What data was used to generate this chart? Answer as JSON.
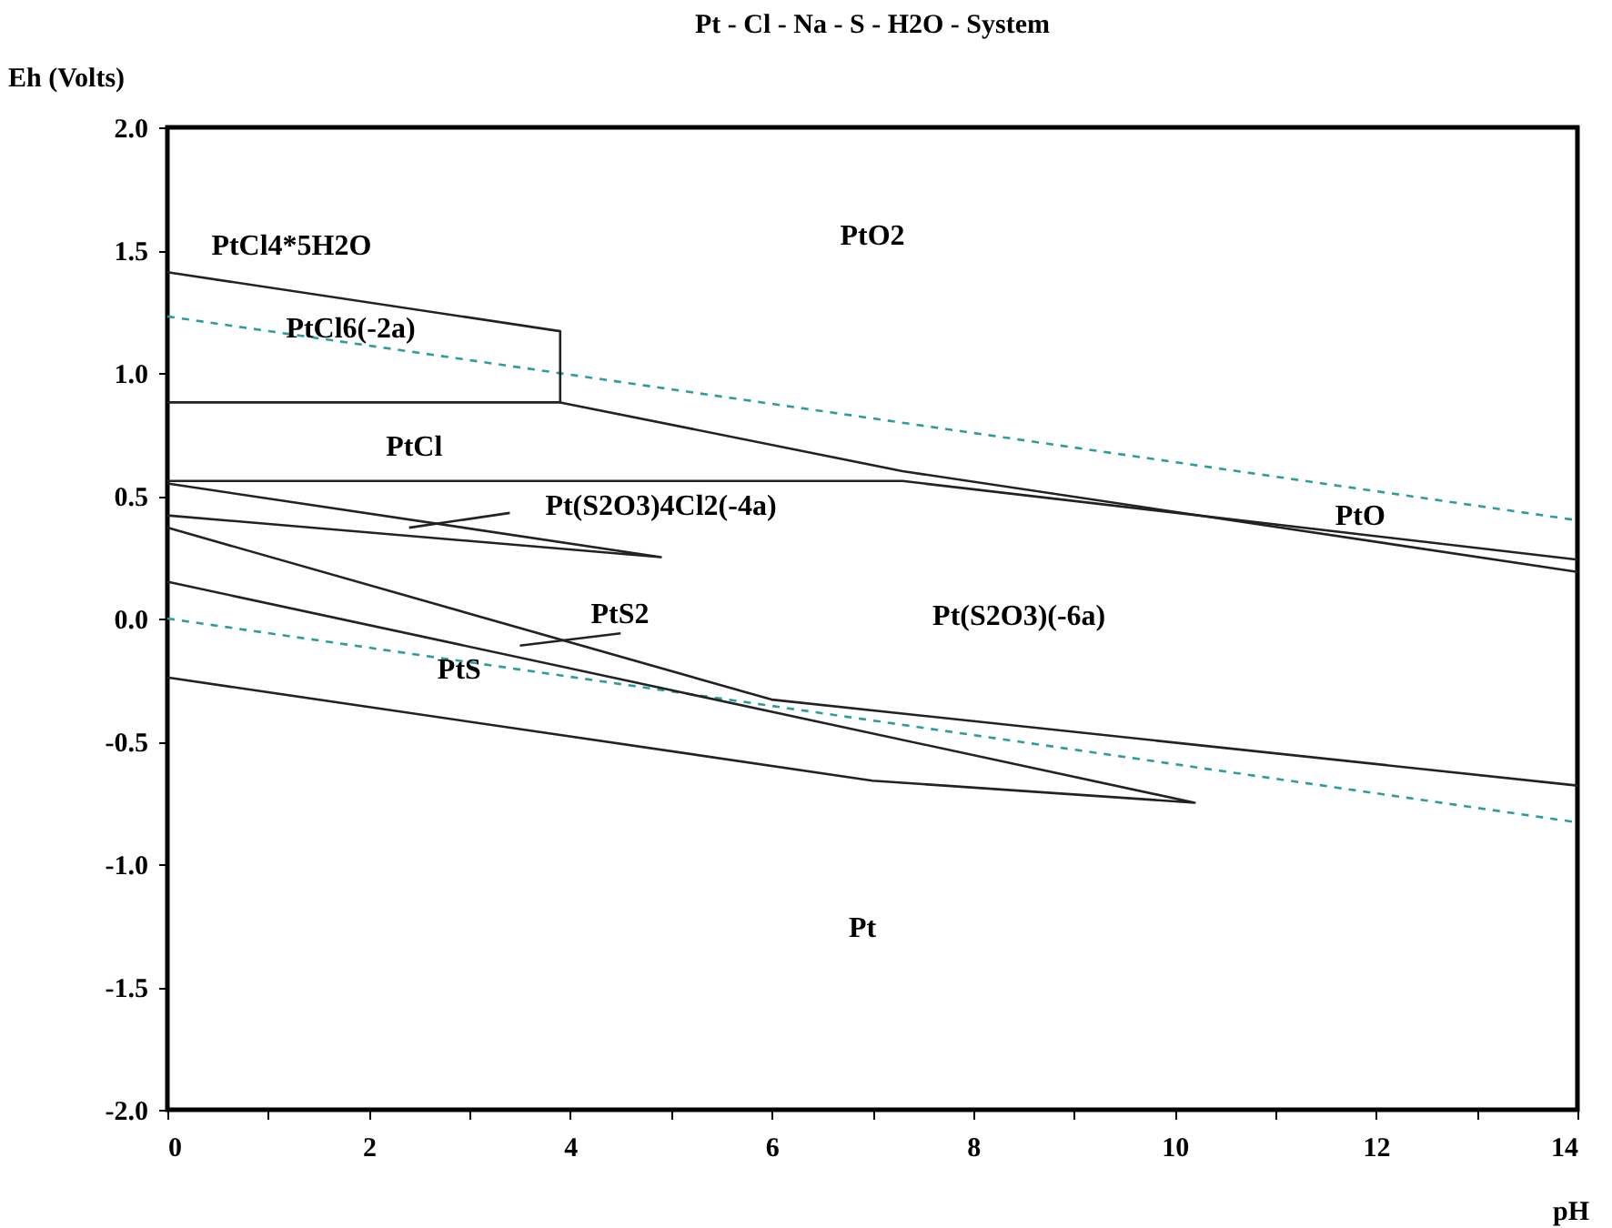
{
  "chart_data": {
    "type": "line",
    "title": "Pt - Cl - Na - S - H2O - System",
    "xlabel": "pH",
    "ylabel": "Eh (Volts)",
    "xlim": [
      0,
      14
    ],
    "ylim": [
      -2,
      2
    ],
    "grid": false,
    "legend": false,
    "marker": "none",
    "xticks": [
      0,
      {
        "value": 1,
        "label": null
      },
      2,
      {
        "value": 3,
        "label": null
      },
      4,
      {
        "value": 5,
        "label": null
      },
      6,
      {
        "value": 7,
        "label": null
      },
      8,
      {
        "value": 9,
        "label": null
      },
      10,
      {
        "value": 11,
        "label": null
      },
      12,
      {
        "value": 13,
        "label": null
      },
      14
    ],
    "yticks": [
      {
        "value": -2,
        "label": "-2.0"
      },
      {
        "value": -1.5,
        "label": "-1.5"
      },
      {
        "value": -1,
        "label": "-1.0"
      },
      {
        "value": -0.5,
        "label": "-0.5"
      },
      {
        "value": 0,
        "label": "0.0"
      },
      {
        "value": 0.5,
        "label": "0.5"
      },
      {
        "value": 1,
        "label": "1.0"
      },
      {
        "value": 1.5,
        "label": "1.5"
      },
      {
        "value": 2,
        "label": "2.0"
      }
    ],
    "series": [
      {
        "line_style": "dashed",
        "color": "#2a9d9d",
        "x": [
          0,
          14
        ],
        "values": [
          1.23,
          0.4
        ]
      },
      {
        "line_style": "dashed",
        "color": "#2a9d9d",
        "x": [
          0,
          14
        ],
        "values": [
          0.0,
          -0.83
        ]
      },
      {
        "line_style": "solid",
        "color": "#222222",
        "x": [
          0,
          3.9,
          3.9,
          0
        ],
        "values": [
          1.41,
          1.17,
          0.88,
          0.88
        ]
      },
      {
        "line_style": "solid",
        "color": "#222222",
        "x": [
          3.9,
          7.3,
          14
        ],
        "values": [
          0.88,
          0.6,
          0.19
        ]
      },
      {
        "line_style": "solid",
        "color": "#222222",
        "x": [
          0,
          7.3,
          14
        ],
        "values": [
          0.56,
          0.56,
          0.24
        ]
      },
      {
        "line_style": "solid",
        "color": "#222222",
        "x": [
          0,
          4.9,
          0
        ],
        "values": [
          0.55,
          0.25,
          0.42
        ]
      },
      {
        "line_style": "solid",
        "color": "#222222",
        "x": [
          0,
          6,
          14
        ],
        "values": [
          0.37,
          -0.33,
          -0.68
        ]
      },
      {
        "line_style": "solid",
        "color": "#222222",
        "x": [
          0,
          10.2,
          7,
          0
        ],
        "values": [
          0.15,
          -0.75,
          -0.66,
          -0.24
        ]
      },
      {
        "line_style": "solid",
        "color": "#222222",
        "x": [
          2.4,
          3.4
        ],
        "values": [
          0.37,
          0.43
        ]
      },
      {
        "line_style": "solid",
        "color": "#222222",
        "x": [
          3.5,
          4.5
        ],
        "values": [
          -0.11,
          -0.06
        ]
      }
    ],
    "annotations": [
      "PtCl4*5H2O",
      "PtO2",
      "PtCl6(-2a)",
      "PtCl",
      "Pt(S2O3)4Cl2(-4a)",
      "PtO",
      "PtS2",
      "Pt(S2O3)(-6a)",
      "PtS",
      "Pt"
    ]
  }
}
